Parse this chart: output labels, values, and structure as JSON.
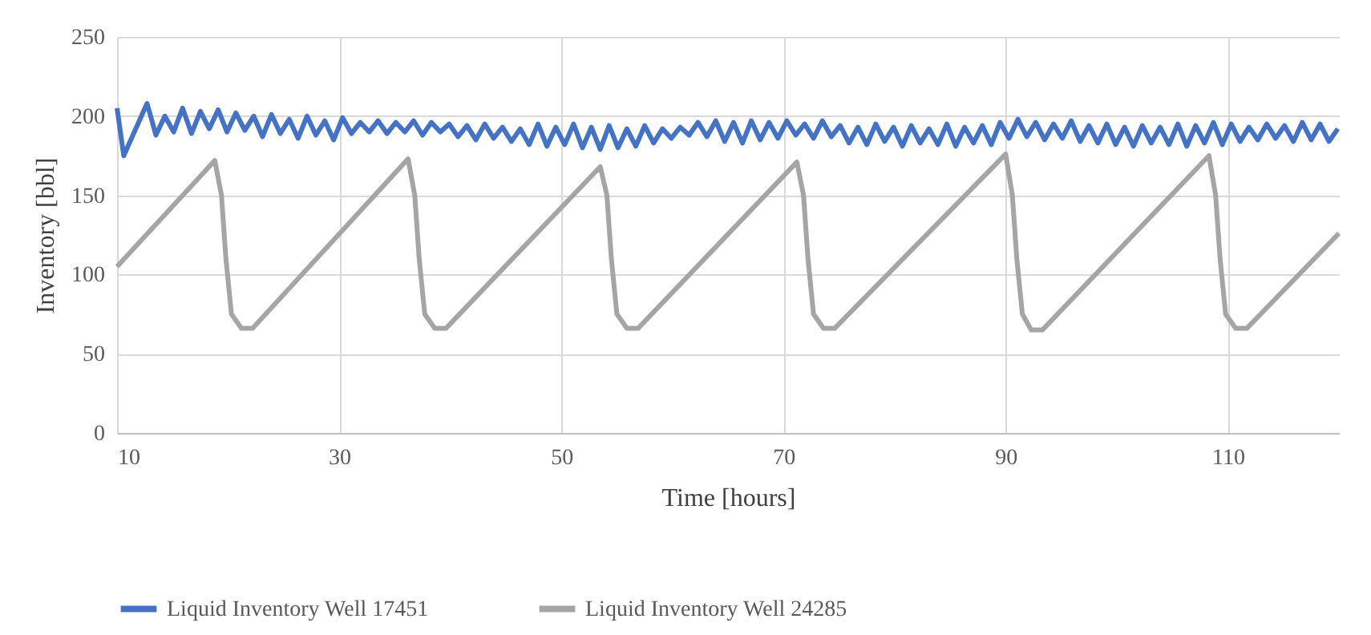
{
  "chart_data": {
    "type": "line",
    "xlabel": "Time [hours]",
    "ylabel": "Inventory [bbl]",
    "xlim": [
      10,
      120
    ],
    "xticks": [
      10,
      30,
      50,
      70,
      90,
      110
    ],
    "ylim": [
      0,
      250
    ],
    "yticks": [
      0,
      50,
      100,
      150,
      200,
      250
    ],
    "grid": true,
    "legend": "bottom",
    "marker": "none",
    "line_style": "solid",
    "series": [
      {
        "name": "Liquid Inventory Well 17451",
        "color": "#4472c4",
        "x": [
          10,
          10.6,
          12.7,
          13.5,
          14.3,
          15.1,
          15.9,
          16.7,
          17.5,
          18.3,
          19.1,
          19.9,
          20.7,
          21.5,
          22.3,
          23.1,
          23.9,
          24.7,
          25.5,
          26.3,
          27.1,
          27.9,
          28.7,
          29.5,
          30.3,
          31.1,
          31.9,
          32.7,
          33.5,
          34.3,
          35.1,
          35.9,
          36.7,
          37.5,
          38.3,
          39.1,
          39.9,
          40.7,
          41.5,
          42.3,
          43.1,
          43.9,
          44.7,
          45.5,
          46.3,
          47.1,
          47.9,
          48.7,
          49.5,
          50.3,
          51.1,
          51.9,
          52.7,
          53.5,
          54.3,
          55.1,
          55.9,
          56.7,
          57.5,
          58.3,
          59.1,
          59.9,
          60.7,
          61.5,
          62.3,
          63.1,
          63.9,
          64.7,
          65.5,
          66.3,
          67.1,
          67.9,
          68.7,
          69.5,
          70.3,
          71.1,
          71.9,
          72.7,
          73.5,
          74.3,
          75.1,
          75.9,
          76.7,
          77.5,
          78.3,
          79.1,
          79.9,
          80.7,
          81.5,
          82.3,
          83.1,
          83.9,
          84.7,
          85.5,
          86.3,
          87.1,
          87.9,
          88.7,
          89.5,
          90.3,
          91.1,
          91.9,
          92.7,
          93.5,
          94.3,
          95.1,
          95.9,
          96.7,
          97.5,
          98.3,
          99.1,
          99.9,
          100.7,
          101.5,
          102.3,
          103.1,
          103.9,
          104.7,
          105.5,
          106.3,
          107.1,
          107.9,
          108.7,
          109.5,
          110.3,
          111.1,
          111.9,
          112.7,
          113.5,
          114.3,
          115.1,
          115.9,
          116.7,
          117.5,
          118.3,
          119.1,
          119.9
        ],
        "values": [
          205,
          175,
          208,
          188,
          200,
          190,
          205,
          189,
          203,
          192,
          204,
          190,
          202,
          191,
          200,
          187,
          201,
          189,
          198,
          186,
          200,
          188,
          197,
          185,
          199,
          189,
          196,
          190,
          197,
          189,
          196,
          190,
          197,
          188,
          196,
          190,
          195,
          187,
          194,
          185,
          195,
          186,
          193,
          184,
          192,
          182,
          195,
          181,
          193,
          182,
          195,
          180,
          193,
          179,
          194,
          180,
          192,
          181,
          194,
          183,
          192,
          186,
          193,
          188,
          196,
          187,
          197,
          184,
          196,
          183,
          197,
          185,
          196,
          186,
          197,
          188,
          195,
          186,
          197,
          187,
          194,
          183,
          193,
          182,
          195,
          184,
          193,
          181,
          194,
          183,
          192,
          182,
          195,
          181,
          193,
          183,
          194,
          182,
          196,
          186,
          198,
          187,
          196,
          185,
          195,
          186,
          197,
          184,
          194,
          183,
          195,
          182,
          193,
          181,
          194,
          183,
          193,
          182,
          195,
          181,
          194,
          183,
          196,
          182,
          195,
          184,
          193,
          185,
          195,
          186,
          194,
          184,
          196,
          185,
          195,
          184,
          192
        ]
      },
      {
        "name": "Liquid Inventory Well 24285",
        "color": "#a5a5a5",
        "x": [
          10,
          18.8,
          19.4,
          19.8,
          20.3,
          21.2,
          22.2,
          36.2,
          36.8,
          37.2,
          37.7,
          38.6,
          39.6,
          53.5,
          54.1,
          54.5,
          55,
          55.9,
          56.9,
          71.2,
          71.8,
          72.2,
          72.7,
          73.6,
          74.6,
          90,
          90.6,
          91,
          91.5,
          92.3,
          93.3,
          108.3,
          108.9,
          109.3,
          109.8,
          110.7,
          111.7,
          120
        ],
        "values": [
          105,
          172,
          150,
          110,
          75,
          66,
          66,
          173,
          150,
          110,
          75,
          66,
          66,
          168,
          150,
          110,
          75,
          66,
          66,
          171,
          150,
          110,
          75,
          66,
          66,
          176,
          150,
          110,
          75,
          65,
          65,
          175,
          150,
          110,
          75,
          66,
          66,
          126
        ]
      }
    ]
  }
}
